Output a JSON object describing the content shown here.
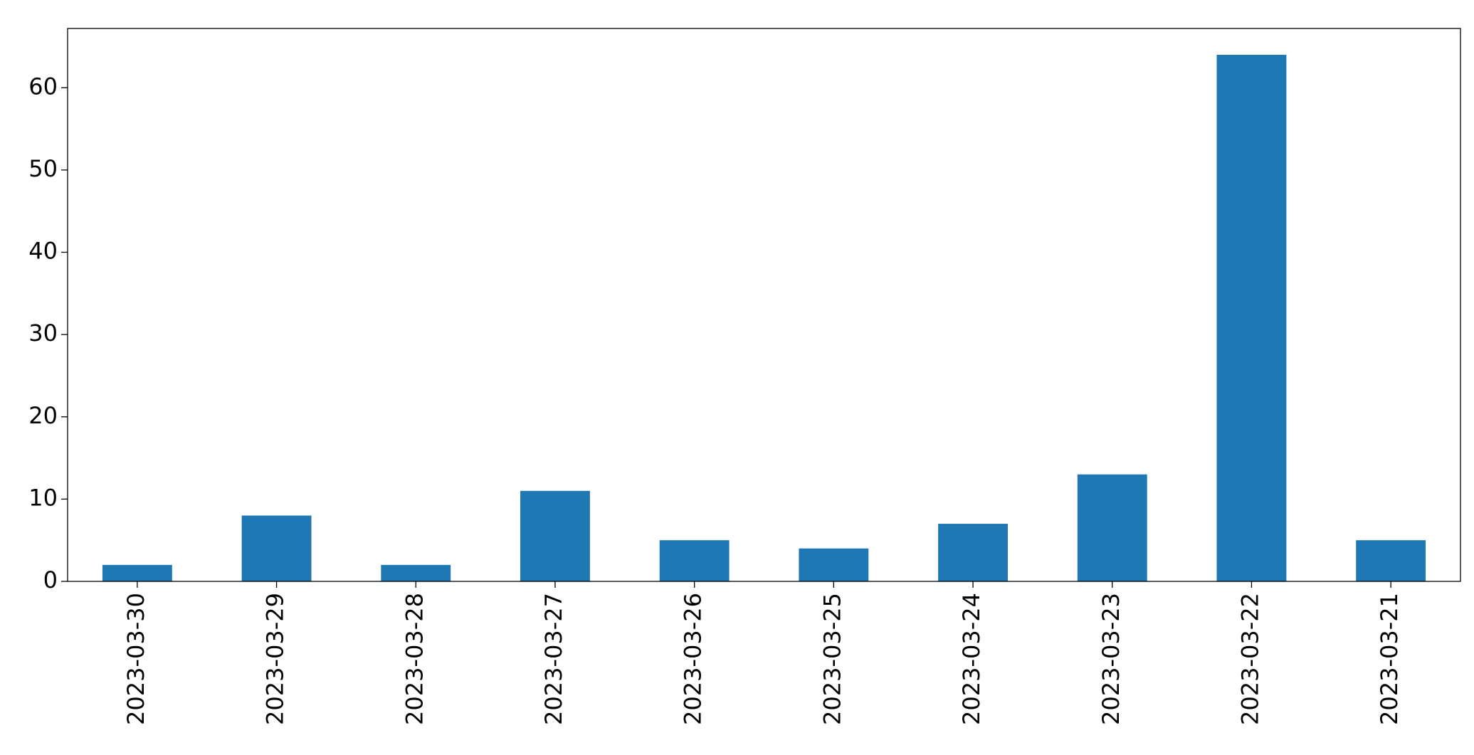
{
  "chart_data": {
    "type": "bar",
    "categories": [
      "2023-03-30",
      "2023-03-29",
      "2023-03-28",
      "2023-03-27",
      "2023-03-26",
      "2023-03-25",
      "2023-03-24",
      "2023-03-23",
      "2023-03-22",
      "2023-03-21"
    ],
    "values": [
      2,
      8,
      2,
      11,
      5,
      4,
      7,
      13,
      64,
      5
    ],
    "color": "#1f77b4",
    "ylim": [
      0,
      67.2
    ],
    "yticks": [
      0,
      10,
      20,
      30,
      40,
      50,
      60
    ],
    "grid": false
  }
}
